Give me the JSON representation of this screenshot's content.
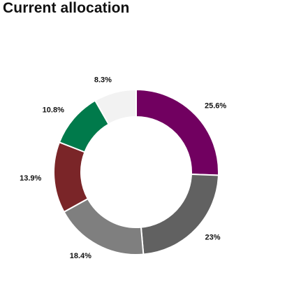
{
  "header": {
    "title": "Current allocation"
  },
  "chart_data": {
    "type": "pie",
    "variant": "donut",
    "title": "Current allocation",
    "slices": [
      {
        "label": "25.6%",
        "value": 25.6,
        "color": "#710060"
      },
      {
        "label": "23%",
        "value": 23.0,
        "color": "#616161"
      },
      {
        "label": "18.4%",
        "value": 18.4,
        "color": "#7f7f7f"
      },
      {
        "label": "13.9%",
        "value": 13.9,
        "color": "#7a2528"
      },
      {
        "label": "10.8%",
        "value": 10.8,
        "color": "#007a4b"
      },
      {
        "label": "8.3%",
        "value": 8.3,
        "color": "#f2f2f2"
      }
    ]
  }
}
